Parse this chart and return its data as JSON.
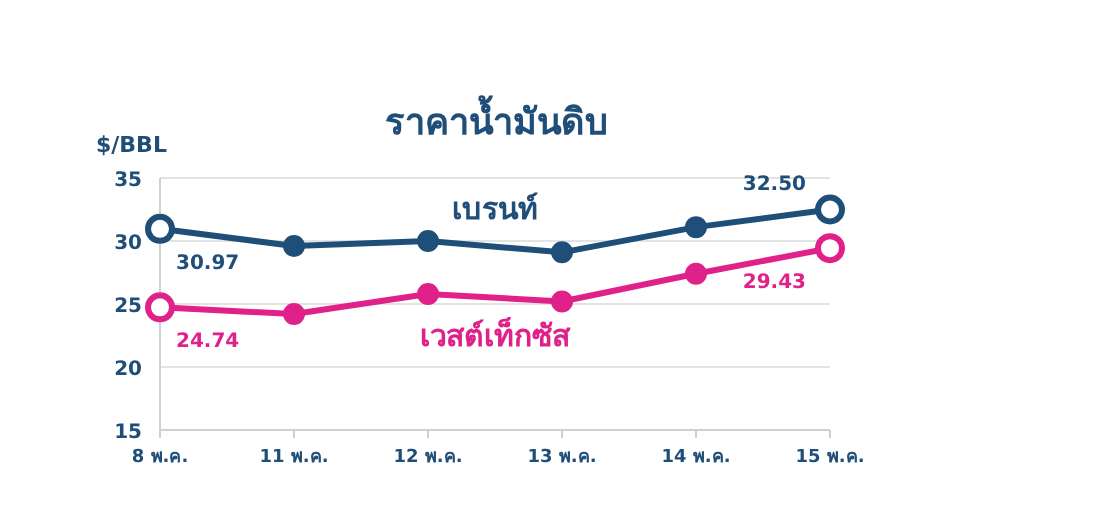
{
  "chart_data": {
    "type": "line",
    "title": "ราคาน้ำมันดิบ",
    "ylabel": "$/BBL",
    "categories": [
      "8 พ.ค.",
      "11 พ.ค.",
      "12 พ.ค.",
      "13 พ.ค.",
      "14 พ.ค.",
      "15 พ.ค."
    ],
    "series": [
      {
        "name": "เบรนท์",
        "color": "#1f4e79",
        "values": [
          30.97,
          29.6,
          30.0,
          29.1,
          31.1,
          32.5
        ],
        "value_labels": [
          "30.97",
          null,
          null,
          null,
          null,
          "32.50"
        ]
      },
      {
        "name": "เวสต์เท็กซัส",
        "color": "#e0218a",
        "values": [
          24.74,
          24.2,
          25.8,
          25.2,
          27.4,
          29.43
        ],
        "value_labels": [
          "24.74",
          null,
          null,
          null,
          null,
          "29.43"
        ]
      }
    ],
    "ylim": [
      15,
      35
    ],
    "yticks": [
      15,
      20,
      25,
      30,
      35
    ],
    "grid": "y",
    "legend": false,
    "marker": "circle",
    "line_style": "solid"
  }
}
